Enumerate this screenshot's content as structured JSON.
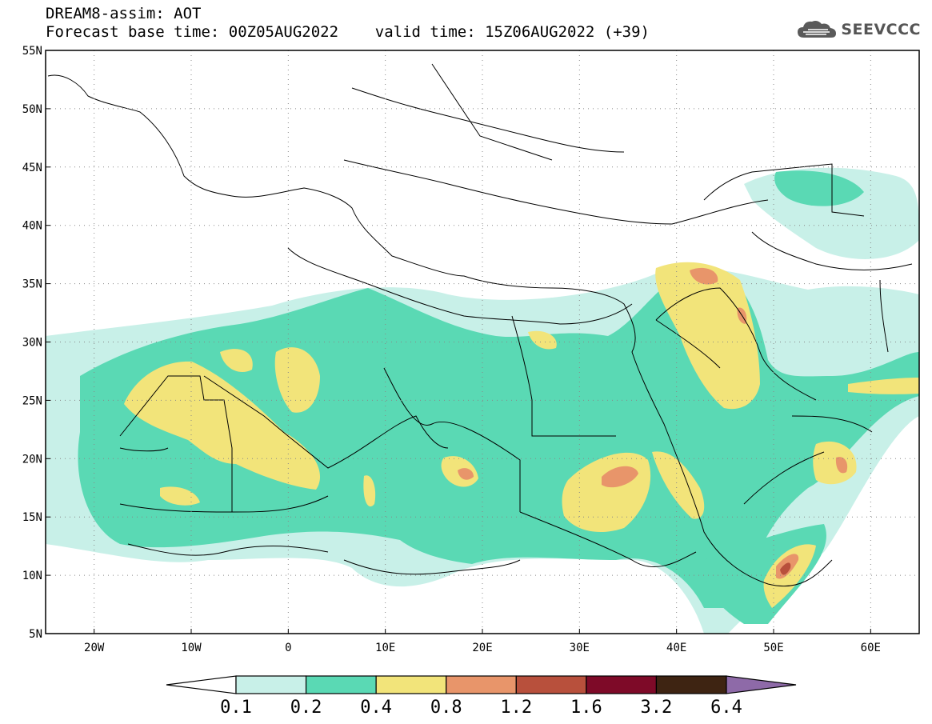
{
  "title": {
    "line1": "DREAM8-assim: AOT",
    "line2": "Forecast base time: 00Z05AUG2022    valid time: 15Z06AUG2022 (+39)"
  },
  "logo": {
    "text": "SEEVCCC",
    "icon": "cloud-icon"
  },
  "map": {
    "lon_range": [
      -25,
      65
    ],
    "lat_range": [
      5,
      55
    ],
    "lon_ticks": [
      {
        "value": -20,
        "label": "20W"
      },
      {
        "value": -10,
        "label": "10W"
      },
      {
        "value": 0,
        "label": "0"
      },
      {
        "value": 10,
        "label": "10E"
      },
      {
        "value": 20,
        "label": "20E"
      },
      {
        "value": 30,
        "label": "30E"
      },
      {
        "value": 40,
        "label": "40E"
      },
      {
        "value": 50,
        "label": "50E"
      },
      {
        "value": 60,
        "label": "60E"
      }
    ],
    "lat_ticks": [
      {
        "value": 55,
        "label": "55N"
      },
      {
        "value": 50,
        "label": "50N"
      },
      {
        "value": 45,
        "label": "45N"
      },
      {
        "value": 40,
        "label": "40N"
      },
      {
        "value": 35,
        "label": "35N"
      },
      {
        "value": 30,
        "label": "30N"
      },
      {
        "value": 25,
        "label": "25N"
      },
      {
        "value": 20,
        "label": "20N"
      },
      {
        "value": 15,
        "label": "15N"
      },
      {
        "value": 10,
        "label": "10N"
      },
      {
        "value": 5,
        "label": "5N"
      }
    ],
    "grid": "dotted"
  },
  "colorbar": {
    "levels": [
      "0.1",
      "0.2",
      "0.4",
      "0.8",
      "1.2",
      "1.6",
      "3.2",
      "6.4"
    ],
    "colors": [
      "#c8f0e8",
      "#5ad9b4",
      "#f2e47a",
      "#e8956a",
      "#b8503c",
      "#7e0a28",
      "#3e2412",
      "#8e6aa8"
    ],
    "under_color": "#ffffff"
  }
}
